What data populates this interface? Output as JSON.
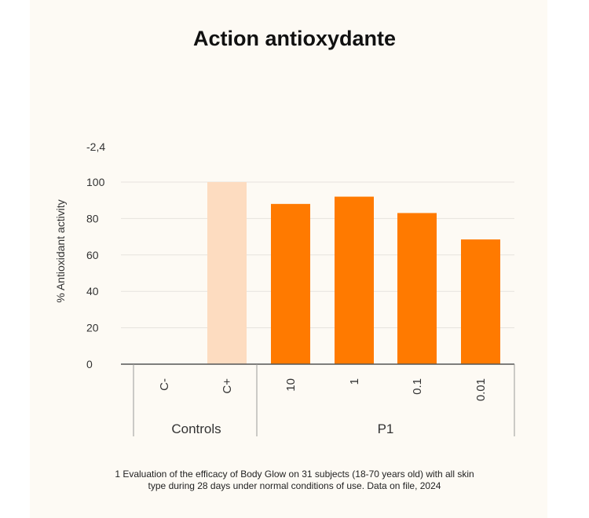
{
  "chart_data": {
    "type": "bar",
    "title": "Action antioxydante",
    "ylabel": "% Antioxidant activity",
    "xlabel": "",
    "ylim": [
      0,
      100
    ],
    "yticks": [
      "0",
      "20",
      "40",
      "60",
      "80",
      "100"
    ],
    "grid": true,
    "categories": [
      "C-",
      "C+",
      "10",
      "1",
      "0.1",
      "0.01"
    ],
    "values": [
      -2.4,
      100,
      88,
      92,
      83,
      68.5
    ],
    "bar_colors": [
      "#fddcc0",
      "#fddcc0",
      "#ff7a00",
      "#ff7a00",
      "#ff7a00",
      "#ff7a00"
    ],
    "annotations": [
      {
        "category": "C-",
        "text": "-2,4"
      }
    ],
    "groups": [
      {
        "label": "Controls",
        "categories": [
          "C-",
          "C+"
        ]
      },
      {
        "label": "P1",
        "categories": [
          "10",
          "1",
          "0.1",
          "0.01"
        ]
      }
    ]
  },
  "footnote": {
    "line1": "1 Evaluation of the efficacy of Body Glow on 31 subjects (18-70 years old) with all skin",
    "line2": "type during 28 days under normal conditions of use. Data on file, 2024"
  },
  "colors": {
    "background": "#fdfaf4",
    "accent": "#ff7a00",
    "control": "#fddcc0"
  }
}
